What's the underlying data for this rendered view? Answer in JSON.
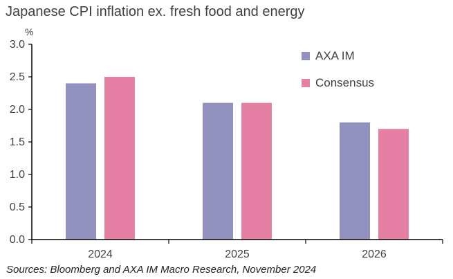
{
  "title": "Japanese CPI inflation ex. fresh food and energy",
  "unit_label": "%",
  "source": "Sources: Bloomberg and AXA IM Macro Research, November 2024",
  "colors": {
    "axa": "#9290bc",
    "consensus": "#e57fa3",
    "axis": "#000000",
    "text": "#404040"
  },
  "chart_data": {
    "type": "bar",
    "categories": [
      "2024",
      "2025",
      "2026"
    ],
    "series": [
      {
        "name": "AXA IM",
        "values": [
          2.4,
          2.1,
          1.8
        ],
        "color": "#9290bc"
      },
      {
        "name": "Consensus",
        "values": [
          2.5,
          2.1,
          1.7
        ],
        "color": "#e57fa3"
      }
    ],
    "ylim": [
      0,
      3.0
    ],
    "yticks": [
      "0.0",
      "0.5",
      "1.0",
      "1.5",
      "2.0",
      "2.5",
      "3.0"
    ],
    "ylabel": "%",
    "grid": false,
    "legend_position": "top-right"
  }
}
